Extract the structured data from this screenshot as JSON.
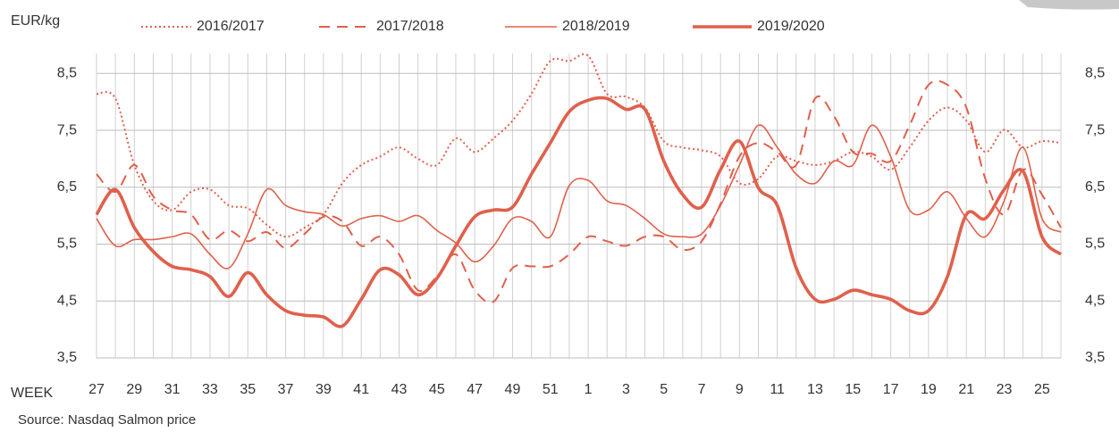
{
  "chart_data": {
    "type": "line",
    "y_label": "EUR/kg",
    "x_label": "WEEK",
    "source": "Source: Nasdaq Salmon price",
    "categories": [
      "27",
      null,
      "29",
      null,
      "31",
      null,
      "33",
      null,
      "35",
      null,
      "37",
      null,
      "39",
      null,
      "41",
      null,
      "43",
      null,
      "45",
      null,
      "47",
      null,
      "49",
      null,
      "51",
      null,
      "1",
      null,
      "3",
      null,
      "5",
      null,
      "7",
      null,
      "9",
      null,
      "11",
      null,
      "13",
      null,
      "15",
      null,
      "17",
      null,
      "19",
      null,
      "21",
      null,
      "23",
      null,
      "25",
      null
    ],
    "series": [
      {
        "name": "2016/2017",
        "color": "#e0604c",
        "dash": "dotted",
        "width": 2,
        "values": [
          8.14,
          8.06,
          6.89,
          6.26,
          6.1,
          6.42,
          6.46,
          6.18,
          6.13,
          5.84,
          5.63,
          5.79,
          6.02,
          6.57,
          6.89,
          7.04,
          7.2,
          7.0,
          6.89,
          7.36,
          7.12,
          7.36,
          7.67,
          8.14,
          8.72,
          8.72,
          8.81,
          8.14,
          8.09,
          7.9,
          7.31,
          7.2,
          7.15,
          7.04,
          6.57,
          6.65,
          7.04,
          6.96,
          6.89,
          6.96,
          7.12,
          7.04,
          6.81,
          7.2,
          7.67,
          7.9,
          7.67,
          7.12,
          7.51,
          7.2,
          7.31,
          7.28
        ]
      },
      {
        "name": "2017/2018",
        "color": "#e0604c",
        "dash": "dashed",
        "width": 2,
        "values": [
          6.73,
          6.42,
          6.89,
          6.34,
          6.1,
          6.02,
          5.58,
          5.74,
          5.55,
          5.71,
          5.43,
          5.68,
          5.98,
          5.9,
          5.47,
          5.63,
          5.32,
          4.69,
          4.93,
          5.32,
          4.69,
          4.49,
          5.08,
          5.11,
          5.11,
          5.32,
          5.63,
          5.55,
          5.47,
          5.63,
          5.63,
          5.4,
          5.55,
          6.21,
          7.04,
          7.28,
          7.12,
          6.89,
          8.06,
          7.75,
          7.12,
          7.09,
          6.96,
          7.59,
          8.3,
          8.3,
          7.9,
          6.65,
          6.02,
          6.81,
          6.37,
          5.79
        ]
      },
      {
        "name": "2018/2019",
        "color": "#e0604c",
        "dash": "solid",
        "width": 1.6,
        "values": [
          5.95,
          5.47,
          5.58,
          5.58,
          5.63,
          5.68,
          5.32,
          5.08,
          5.68,
          6.46,
          6.18,
          6.07,
          6.02,
          5.82,
          5.95,
          6.0,
          5.9,
          6.0,
          5.74,
          5.52,
          5.19,
          5.47,
          5.95,
          5.9,
          5.63,
          6.53,
          6.62,
          6.26,
          6.18,
          5.95,
          5.68,
          5.63,
          5.68,
          6.18,
          6.89,
          7.59,
          7.2,
          6.73,
          6.57,
          6.96,
          6.89,
          7.59,
          7.04,
          6.1,
          6.1,
          6.42,
          5.95,
          5.63,
          6.26,
          7.2,
          5.95,
          5.71
        ]
      },
      {
        "name": "2019/2020",
        "color": "#e0604c",
        "dash": "solid",
        "width": 3.6,
        "values": [
          6.02,
          6.46,
          5.79,
          5.37,
          5.11,
          5.05,
          4.93,
          4.58,
          5.0,
          4.61,
          4.33,
          4.25,
          4.22,
          4.06,
          4.53,
          5.05,
          4.96,
          4.61,
          4.9,
          5.47,
          5.98,
          6.1,
          6.15,
          6.73,
          7.28,
          7.83,
          8.03,
          8.06,
          7.87,
          7.87,
          6.96,
          6.37,
          6.15,
          6.81,
          7.31,
          6.49,
          6.18,
          5.08,
          4.53,
          4.53,
          4.69,
          4.61,
          4.53,
          4.33,
          4.33,
          4.93,
          6.02,
          5.95,
          6.46,
          6.78,
          5.63,
          5.32
        ]
      }
    ],
    "ylim": [
      3.5,
      8.85
    ],
    "yticks": [
      {
        "value": 3.5,
        "label": "3,5"
      },
      {
        "value": 4.5,
        "label": "4,5"
      },
      {
        "value": 5.5,
        "label": "5,5"
      },
      {
        "value": 6.5,
        "label": "6,5"
      },
      {
        "value": 7.5,
        "label": "7,5"
      },
      {
        "value": 8.5,
        "label": "8,5"
      }
    ],
    "grid": true
  }
}
